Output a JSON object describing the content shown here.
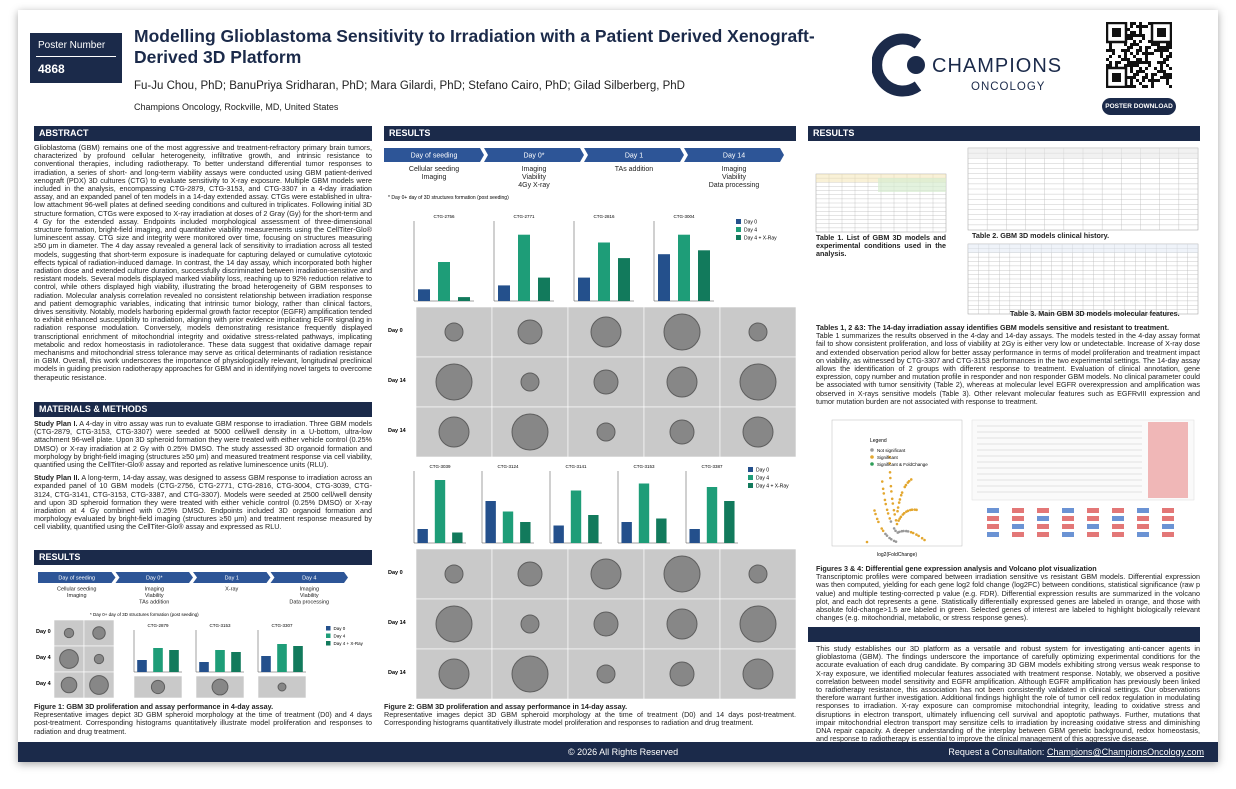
{
  "header": {
    "poster_number_label": "Poster Number",
    "poster_number": "4868",
    "title": "Modelling Glioblastoma Sensitivity to Irradiation with a Patient Derived Xenograft-Derived 3D Platform",
    "authors": "Fu-Ju Chou, PhD; BanuPriya Sridharan, PhD; Mara Gilardi, PhD; Stefano Cairo, PhD; Gilad Silberberg, PhD",
    "affiliation": "Champions Oncology, Rockville, MD, United States",
    "logo_main": "CHAMPIONS",
    "logo_sub": "ONCOLOGY",
    "download": "POSTER DOWNLOAD"
  },
  "abstract": {
    "heading": "ABSTRACT",
    "text": "Glioblastoma (GBM) remains one of the most aggressive and treatment-refractory primary brain tumors, characterized by profound cellular heterogeneity, infiltrative growth, and intrinsic resistance to conventional therapies, including radiotherapy. To better understand differential tumor responses to irradiation, a series of short- and long-term viability assays were conducted using GBM patient-derived xenograft (PDX) 3D cultures (CTG) to evaluate sensitivity to X-ray exposure. Multiple GBM models were included in the analysis, encompassing CTG-2879, CTG-3153, and CTG-3307 in a 4-day irradiation assay, and an expanded panel of ten models in a 14-day extended assay. CTGs were established in ultra-low attachment 96-well plates at defined seeding conditions and cultured in triplicates. Following initial 3D structure formation, CTGs were exposed to X-ray irradiation at doses of 2 Gray (Gy) for the short-term and 4 Gy for the extended assay. Endpoints included morphological assessment of three-dimensional structure formation, bright-field imaging, and quantitative viability measurements using the CellTiter-Glo® luminescent assay. CTG size and integrity were monitored over time, focusing on structures measuring ≥50 μm in diameter. The 4 day assay revealed a general lack of sensitivity to irradiation across all tested models, suggesting that short-term exposure is inadequate for capturing delayed or cumulative cytotoxic effects typical of radiation-induced damage. In contrast, the 14 day assay, which incorporated both higher radiation dose and extended culture duration, successfully discriminated between irradiation-sensitive and resistant models. Several models displayed marked viability loss, reaching up to 92% reduction relative to control, while others displayed high viability, illustrating the broad heterogeneity of GBM responses to radiation. Molecular analysis correlation revealed no consistent relationship between irradiation response and patient demographic variables, indicating that intrinsic tumor biology, rather than clinical factors, drives sensitivity. Notably, models harboring epidermal growth factor receptor (EGFR) amplification tended to exhibit enhanced susceptibility to irradiation, aligning with prior evidence implicating EGFR signaling in radiation response modulation. Conversely, models demonstrating resistance frequently displayed transcriptional enrichment of mitochondrial integrity and oxidative stress-related pathways, implicating metabolic and redox homeostasis in radiotolerance. These data suggest that oxidative damage repair mechanisms and mitochondrial stress tolerance may serve as critical determinants of radiation resistance in GBM. Overall, this work underscores the importance of physiologically relevant, longitudinal preclinical models in guiding precision radiotherapy approaches for GBM and in identifying novel targets to overcome therapeutic resistance."
  },
  "methods": {
    "heading": "MATERIALS & METHODS",
    "plan1_label": "Study Plan I.",
    "plan1_text": "A 4-day in vitro assay was run to evaluate GBM response to irradiation. Three GBM models (CTG-2879, CTG-3153, CTG-3307) were seeded at 5000 cell/well density in a U-bottom, ultra-low attachment 96-well plate. Upon 3D spheroid formation they were treated with either vehicle control (0.25% DMSO) or X-ray irradiation at 2 Gy with 0.25% DMSO. The study assessed 3D organoid formation and morphology by bright-field imaging (structures ≥50 μm) and measured treatment response via cell viability, quantified using the CellTiter-Glo® assay and reported as relative luminescence units (RLU).",
    "plan2_label": "Study Plan II.",
    "plan2_text": "A long-term, 14-day assay, was designed to assess GBM response to irradiation across an expanded panel of 10 GBM models (CTG-2756, CTG-2771, CTG-2816, CTG-3004, CTG-3039, CTG-3124, CTG-3141, CTG-3153, CTG-3387, and CTG-3307). Models were seeded at 2500 cell/well density and upon 3D spheroid formation they were treated with either vehicle control (0.25% DMSO) or X-ray irradiation at 4 Gy combined with 0.25% DMSO. Endpoints included 3D organoid formation and morphology evaluated by bright-field imaging (structures ≥50 μm) and treatment response measured by cell viability, quantified using the CellTiter-Glo® assay and expressed as RLU."
  },
  "results_left": {
    "heading": "RESULTS",
    "timeline": [
      {
        "day": "Day of seeding",
        "steps": [
          "Cellular seeding",
          "Imaging"
        ]
      },
      {
        "day": "Day 0*",
        "steps": [
          "Imaging",
          "Viability",
          "TAs addition"
        ]
      },
      {
        "day": "Day 1",
        "steps": [
          "X-ray"
        ]
      },
      {
        "day": "Day 4",
        "steps": [
          "Imaging",
          "Viability",
          "Data processing"
        ]
      }
    ],
    "footnote": "* Day 0+ day of 3D structures formation (post seeding)",
    "image_rows": [
      "Day 0",
      "Day 4",
      "Day 4"
    ],
    "legend": [
      {
        "name": "Day 0",
        "color": "#24508c"
      },
      {
        "name": "Day 4",
        "color": "#1e9d78"
      },
      {
        "name": "Day 4 + X-Ray",
        "color": "#127a5c"
      }
    ],
    "charts": [
      {
        "title": "CTG-2879",
        "values": [
          30,
          60,
          55
        ]
      },
      {
        "title": "CTG-3153",
        "values": [
          25,
          55,
          50
        ]
      },
      {
        "title": "CTG-3307",
        "values": [
          40,
          70,
          65
        ]
      }
    ],
    "caption_title": "Figure 1: GBM 3D proliferation and assay performance in 4-day assay.",
    "caption_text": "Representative images depict 3D GBM spheroid morphology at the time of treatment (D0) and 4 days post-treatment. Corresponding histograms quantitatively illustrate model proliferation and responses to radiation and drug treatment."
  },
  "results_mid": {
    "heading": "RESULTS",
    "timeline": [
      {
        "day": "Day of seeding",
        "steps": [
          "Cellular seeding",
          "Imaging"
        ]
      },
      {
        "day": "Day 0*",
        "steps": [
          "Imaging",
          "Viability",
          "4Gy X-ray"
        ]
      },
      {
        "day": "Day 1",
        "steps": [
          "TAs addition"
        ]
      },
      {
        "day": "Day 14",
        "steps": [
          "Imaging",
          "Viability",
          "Data processing"
        ]
      }
    ],
    "footnote": "* Day 0+ day of 3D structures formation (post seeding)",
    "legend": [
      {
        "name": "Day 0",
        "color": "#24508c"
      },
      {
        "name": "Day 4",
        "color": "#1e9d78"
      },
      {
        "name": "Day 4 + X-Ray",
        "color": "#127a5c"
      }
    ],
    "charts_top": [
      {
        "title": "CTG-2756",
        "values": [
          15,
          50,
          5
        ]
      },
      {
        "title": "CTG-2771",
        "values": [
          20,
          85,
          30
        ]
      },
      {
        "title": "CTG-2816",
        "values": [
          30,
          75,
          55
        ]
      },
      {
        "title": "CTG-3004",
        "values": [
          60,
          85,
          65
        ]
      }
    ],
    "charts_bottom": [
      {
        "title": "CTG-3039",
        "values": [
          20,
          90,
          15
        ]
      },
      {
        "title": "CTG-3124",
        "values": [
          60,
          45,
          30
        ]
      },
      {
        "title": "CTG-3141",
        "values": [
          25,
          75,
          40
        ]
      },
      {
        "title": "CTG-3153",
        "values": [
          30,
          85,
          35
        ]
      },
      {
        "title": "CTG-3387",
        "values": [
          20,
          80,
          60
        ]
      }
    ],
    "image_rows_top": [
      "Day 0",
      "Day 14",
      "Day 14"
    ],
    "image_rows_bottom": [
      "Day 0",
      "Day 14",
      "Day 14"
    ],
    "caption_title": "Figure 2: GBM 3D proliferation and assay performance in 14-day assay.",
    "caption_text": "Representative images depict 3D GBM spheroid morphology at the time of treatment (D0) and 14 days post-treatment. Corresponding histograms quantitatively illustrate model proliferation and responses to radiation and drug treatment."
  },
  "results_right": {
    "heading": "RESULTS",
    "table1_caption": "Table 1. List of GBM 3D models and experimental conditions used in the analysis.",
    "table2_caption": "Table 2. GBM 3D models clinical history.",
    "table3_caption": "Table 3. Main GBM 3D models molecular features.",
    "tables_title": "Tables 1, 2 &3: The 14-day irradiation assay identifies GBM models sensitive and resistant to treatment.",
    "tables_text": "Table 1 summarizes the results observed in the 4-day and 14-day assays. The models tested in the 4-day assay format fail to show consistent proliferation, and loss of viability at 2Gy is either very low or undetectable. Increase of X-ray dose and extended observation period allow for better assay performance in terms of model proliferation and treatment impact on viability, as witnessed by CTG-3307 and CTG-3153 performances in the two experimental settings. The 14-day assay allows the identification of 2 groups with different response to treatment. Evaluation of clinical annotation, gene expression, copy number and mutation profile in responder and non responder GBM models. No clinical parameter could be associated with tumor sensitivity (Table 2), whereas at molecular level EGFR overexpression and amplification was observed in X-rays sensitive models (Table 3). Other relevant molecular features such as EGFRvIII expression and tumor mutation burden are not associated with response to treatment.",
    "volcano_legend_title": "Legend",
    "volcano_legend": [
      "Not significant",
      "Significant",
      "Significant & FoldChange"
    ],
    "volcano_xlabel": "log2(FoldChange)",
    "figs_title": "Figures 3 & 4: Differential gene expression analysis and Volcano plot visualization",
    "figs_text": "Transcriptomic profiles were compared between irradiation sensitive vs resistant GBM models. Differential expression was then computed, yielding for each gene log2 fold change (log2FC) between conditions, statistical significance (raw p value) and multiple testing-corrected p value (e.g. FDR). Differential expression results are summarized in the volcano plot, and each dot represents a gene. Statistically differentially expressed genes are labeled in orange, and those with absolute fold-change>1.5 are labeled in green. Selected genes of interest are labeled to highlight biologically relevant changes (e.g. mitochondrial, metabolic, or stress response genes).",
    "conclusion_text": "This study establishes our 3D platform as a versatile and robust system for investigating anti-cancer agents in glioblastoma (GBM). The findings underscore the importance of carefully optimizing experimental conditions for the accurate evaluation of each drug candidate. By comparing 3D GBM models exhibiting strong versus weak response to X-ray exposure, we identified molecular features associated with treatment response. Notably, we observed a positive correlation between model sensitivity and EGFR amplification. Although EGFR amplification has previously been linked to radiotherapy resistance, this association has not been consistently validated in clinical settings. Our observations therefore warrant further investigation. Additional findings highlight the role of tumor cell redox regulation in modulating responses to irradiation. X-ray exposure can compromise mitochondrial integrity, leading to oxidative stress and disruptions in electron transport, ultimately influencing cell survival and apoptotic pathways. Further, mutations that impair mitochondrial electron transport may sensitize cells to irradiation by increasing oxidative stress and diminishing DNA repair capacity. A deeper understanding of the interplay between GBM genetic background, redox homeostasis, and response to radiotherapy is essential to improve the clinical management of this aggressive disease."
  },
  "footer": {
    "copyright": "© 2026 All Rights Reserved",
    "consult_label": "Request a Consultation:",
    "consult_email": "Champions@ChampionsOncology.com"
  }
}
